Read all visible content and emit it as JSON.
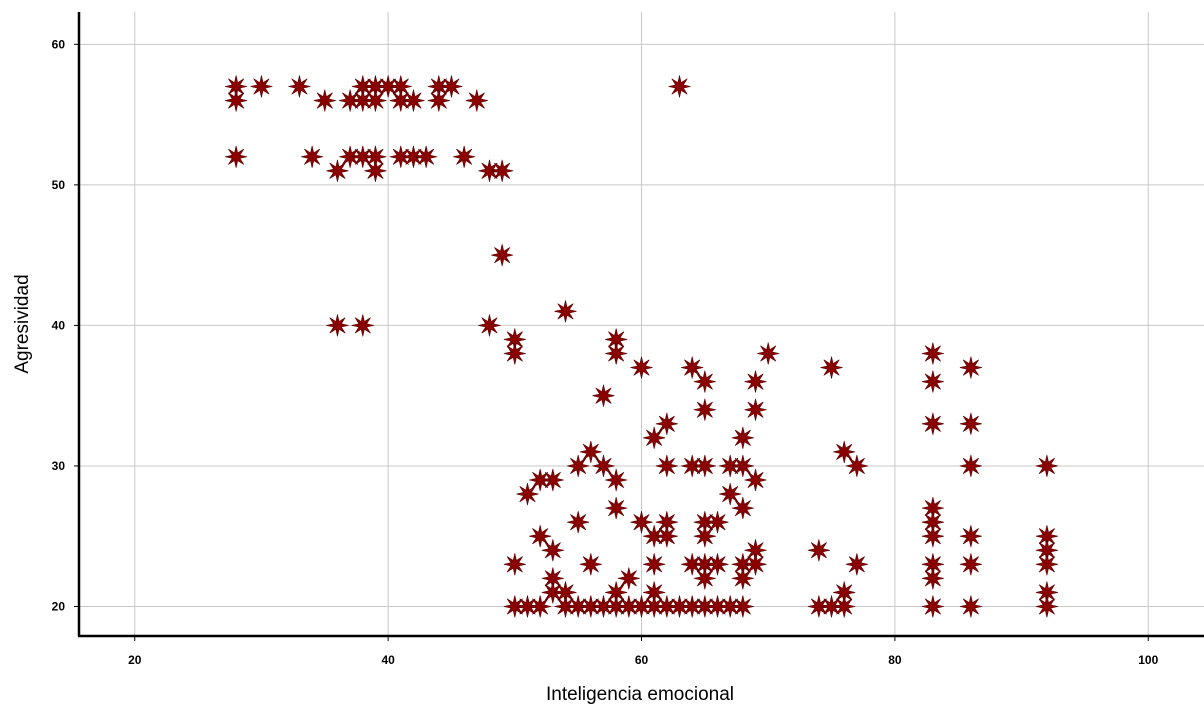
{
  "chart_data": {
    "type": "scatter",
    "title": "",
    "xlabel": "Inteligencia emocional",
    "ylabel": "Agresividad",
    "xlim": [
      15.6,
      104.4
    ],
    "ylim": [
      17.9,
      62.3
    ],
    "xticks": [
      20,
      40,
      60,
      80,
      100
    ],
    "yticks": [
      20,
      30,
      40,
      50,
      60
    ],
    "grid": true,
    "marker": "star",
    "marker_color": "#8b0000",
    "points": [
      [
        28,
        57
      ],
      [
        28,
        56
      ],
      [
        28,
        52
      ],
      [
        30,
        57
      ],
      [
        33,
        57
      ],
      [
        34,
        52
      ],
      [
        35,
        56
      ],
      [
        36,
        51
      ],
      [
        36,
        40
      ],
      [
        37,
        56
      ],
      [
        37,
        52
      ],
      [
        38,
        57
      ],
      [
        38,
        56
      ],
      [
        38,
        52
      ],
      [
        38,
        40
      ],
      [
        39,
        57
      ],
      [
        39,
        56
      ],
      [
        39,
        52
      ],
      [
        39,
        51
      ],
      [
        40,
        57
      ],
      [
        41,
        57
      ],
      [
        41,
        56
      ],
      [
        41,
        52
      ],
      [
        42,
        56
      ],
      [
        42,
        52
      ],
      [
        43,
        52
      ],
      [
        44,
        57
      ],
      [
        44,
        56
      ],
      [
        45,
        57
      ],
      [
        46,
        52
      ],
      [
        47,
        56
      ],
      [
        48,
        51
      ],
      [
        48,
        40
      ],
      [
        49,
        51
      ],
      [
        49,
        45
      ],
      [
        50,
        39
      ],
      [
        50,
        38
      ],
      [
        50,
        23
      ],
      [
        50,
        20
      ],
      [
        51,
        28
      ],
      [
        51,
        20
      ],
      [
        52,
        29
      ],
      [
        52,
        25
      ],
      [
        52,
        20
      ],
      [
        53,
        29
      ],
      [
        53,
        24
      ],
      [
        53,
        22
      ],
      [
        53,
        21
      ],
      [
        54,
        41
      ],
      [
        54,
        21
      ],
      [
        54,
        20
      ],
      [
        55,
        30
      ],
      [
        55,
        26
      ],
      [
        55,
        20
      ],
      [
        56,
        31
      ],
      [
        56,
        23
      ],
      [
        56,
        20
      ],
      [
        57,
        35
      ],
      [
        57,
        30
      ],
      [
        57,
        20
      ],
      [
        58,
        39
      ],
      [
        58,
        38
      ],
      [
        58,
        29
      ],
      [
        58,
        27
      ],
      [
        58,
        21
      ],
      [
        58,
        20
      ],
      [
        59,
        22
      ],
      [
        59,
        20
      ],
      [
        60,
        37
      ],
      [
        60,
        26
      ],
      [
        60,
        20
      ],
      [
        61,
        32
      ],
      [
        61,
        25
      ],
      [
        61,
        23
      ],
      [
        61,
        21
      ],
      [
        61,
        20
      ],
      [
        62,
        33
      ],
      [
        62,
        30
      ],
      [
        62,
        26
      ],
      [
        62,
        25
      ],
      [
        62,
        20
      ],
      [
        63,
        57
      ],
      [
        63,
        20
      ],
      [
        64,
        37
      ],
      [
        64,
        30
      ],
      [
        64,
        23
      ],
      [
        64,
        20
      ],
      [
        65,
        36
      ],
      [
        65,
        34
      ],
      [
        65,
        30
      ],
      [
        65,
        26
      ],
      [
        65,
        25
      ],
      [
        65,
        23
      ],
      [
        65,
        22
      ],
      [
        65,
        20
      ],
      [
        66,
        26
      ],
      [
        66,
        23
      ],
      [
        66,
        20
      ],
      [
        67,
        30
      ],
      [
        67,
        28
      ],
      [
        67,
        20
      ],
      [
        68,
        32
      ],
      [
        68,
        30
      ],
      [
        68,
        27
      ],
      [
        68,
        23
      ],
      [
        68,
        22
      ],
      [
        68,
        20
      ],
      [
        69,
        36
      ],
      [
        69,
        34
      ],
      [
        69,
        29
      ],
      [
        69,
        24
      ],
      [
        69,
        23
      ],
      [
        70,
        38
      ],
      [
        74,
        24
      ],
      [
        74,
        20
      ],
      [
        75,
        37
      ],
      [
        75,
        20
      ],
      [
        76,
        31
      ],
      [
        76,
        21
      ],
      [
        76,
        20
      ],
      [
        77,
        30
      ],
      [
        77,
        23
      ],
      [
        83,
        38
      ],
      [
        83,
        36
      ],
      [
        83,
        33
      ],
      [
        83,
        27
      ],
      [
        83,
        26
      ],
      [
        83,
        25
      ],
      [
        83,
        23
      ],
      [
        83,
        22
      ],
      [
        83,
        20
      ],
      [
        86,
        37
      ],
      [
        86,
        33
      ],
      [
        86,
        30
      ],
      [
        86,
        25
      ],
      [
        86,
        23
      ],
      [
        86,
        20
      ],
      [
        92,
        30
      ],
      [
        92,
        25
      ],
      [
        92,
        24
      ],
      [
        92,
        23
      ],
      [
        92,
        21
      ],
      [
        92,
        20
      ]
    ]
  }
}
